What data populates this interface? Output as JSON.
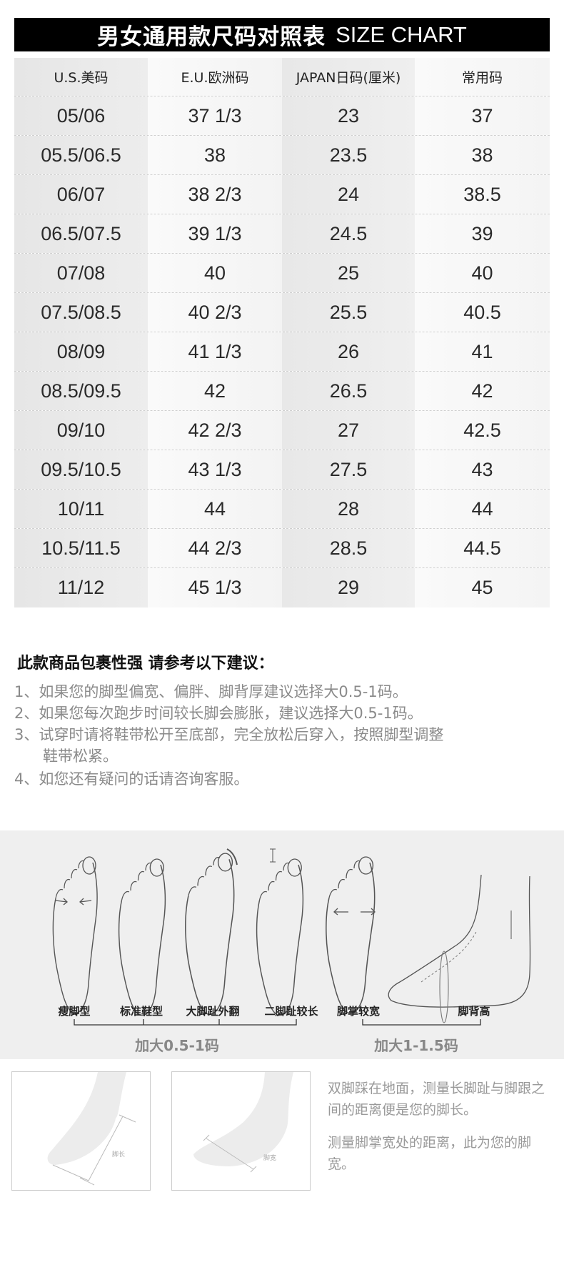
{
  "title": {
    "cn": "男女通用款尺码对照表",
    "en": "SIZE CHART"
  },
  "table": {
    "headers": [
      "U.S.美码",
      "E.U.欧洲码",
      "JAPAN日码(厘米)",
      "常用码"
    ],
    "rows": [
      [
        "05/06",
        "37 1/3",
        "23",
        "37"
      ],
      [
        "05.5/06.5",
        "38",
        "23.5",
        "38"
      ],
      [
        "06/07",
        "38 2/3",
        "24",
        "38.5"
      ],
      [
        "06.5/07.5",
        "39 1/3",
        "24.5",
        "39"
      ],
      [
        "07/08",
        "40",
        "25",
        "40"
      ],
      [
        "07.5/08.5",
        "40 2/3",
        "25.5",
        "40.5"
      ],
      [
        "08/09",
        "41 1/3",
        "26",
        "41"
      ],
      [
        "08.5/09.5",
        "42",
        "26.5",
        "42"
      ],
      [
        "09/10",
        "42 2/3",
        "27",
        "42.5"
      ],
      [
        "09.5/10.5",
        "43 1/3",
        "27.5",
        "43"
      ],
      [
        "10/11",
        "44",
        "28",
        "44"
      ],
      [
        "10.5/11.5",
        "44 2/3",
        "28.5",
        "44.5"
      ],
      [
        "11/12",
        "45 1/3",
        "29",
        "45"
      ]
    ]
  },
  "advice": {
    "title": "此款商品包裹性强 请参考以下建议：",
    "items": [
      "1、如果您的脚型偏宽、偏胖、脚背厚建议选择大0.5-1码。",
      "2、如果您每次跑步时间较长脚会膨胀，建议选择大0.5-1码。",
      "3、试穿时请将鞋带松开至底部，完全放松后穿入，按照脚型调整",
      "鞋带松紧。",
      "4、如您还有疑问的话请咨询客服。"
    ]
  },
  "foot_types": {
    "labels": [
      "瘦脚型",
      "标准鞋型",
      "大脚趾外翻",
      "二脚趾较长",
      "脚掌较宽",
      "脚背高"
    ],
    "group1": "加大0.5-1码",
    "group2": "加大1-1.5码"
  },
  "measure": {
    "length_label": "脚长",
    "width_label": "脚宽",
    "text1": "双脚踩在地面，测量长脚趾与脚跟之间的距离便是您的脚长。",
    "text2": "测量脚掌宽处的距离，此为您的脚宽。"
  }
}
